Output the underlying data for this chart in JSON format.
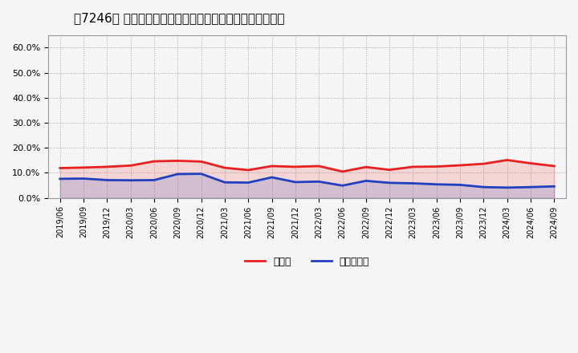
{
  "title": "［7246］ 現預金、有利子負債の総資産に対する比率の推移",
  "x_labels": [
    "2019/06",
    "2019/09",
    "2019/12",
    "2020/03",
    "2020/06",
    "2020/09",
    "2020/12",
    "2021/03",
    "2021/06",
    "2021/09",
    "2021/12",
    "2022/03",
    "2022/06",
    "2022/09",
    "2022/12",
    "2023/03",
    "2023/06",
    "2023/09",
    "2023/12",
    "2024/03",
    "2024/06",
    "2024/09"
  ],
  "cash_values": [
    0.119,
    0.121,
    0.124,
    0.129,
    0.146,
    0.148,
    0.145,
    0.12,
    0.111,
    0.127,
    0.124,
    0.127,
    0.105,
    0.123,
    0.112,
    0.124,
    0.125,
    0.13,
    0.136,
    0.151,
    0.138,
    0.127
  ],
  "debt_values": [
    0.076,
    0.077,
    0.071,
    0.07,
    0.071,
    0.095,
    0.096,
    0.062,
    0.061,
    0.082,
    0.063,
    0.065,
    0.049,
    0.068,
    0.06,
    0.058,
    0.054,
    0.052,
    0.043,
    0.041,
    0.043,
    0.046
  ],
  "cash_color": "#e82020",
  "debt_color": "#2040c0",
  "background_color": "#f5f5f5",
  "plot_background": "#f5f5f5",
  "ylim": [
    0.0,
    0.65
  ],
  "yticks": [
    0.0,
    0.1,
    0.2,
    0.3,
    0.4,
    0.5,
    0.6
  ],
  "ytick_labels": [
    "0.0%",
    "10.0%",
    "20.0%",
    "30.0%",
    "40.0%",
    "50.0%",
    "60.0%"
  ],
  "legend_cash": "現預金",
  "legend_debt": "有利子負債",
  "line_width": 2.0
}
